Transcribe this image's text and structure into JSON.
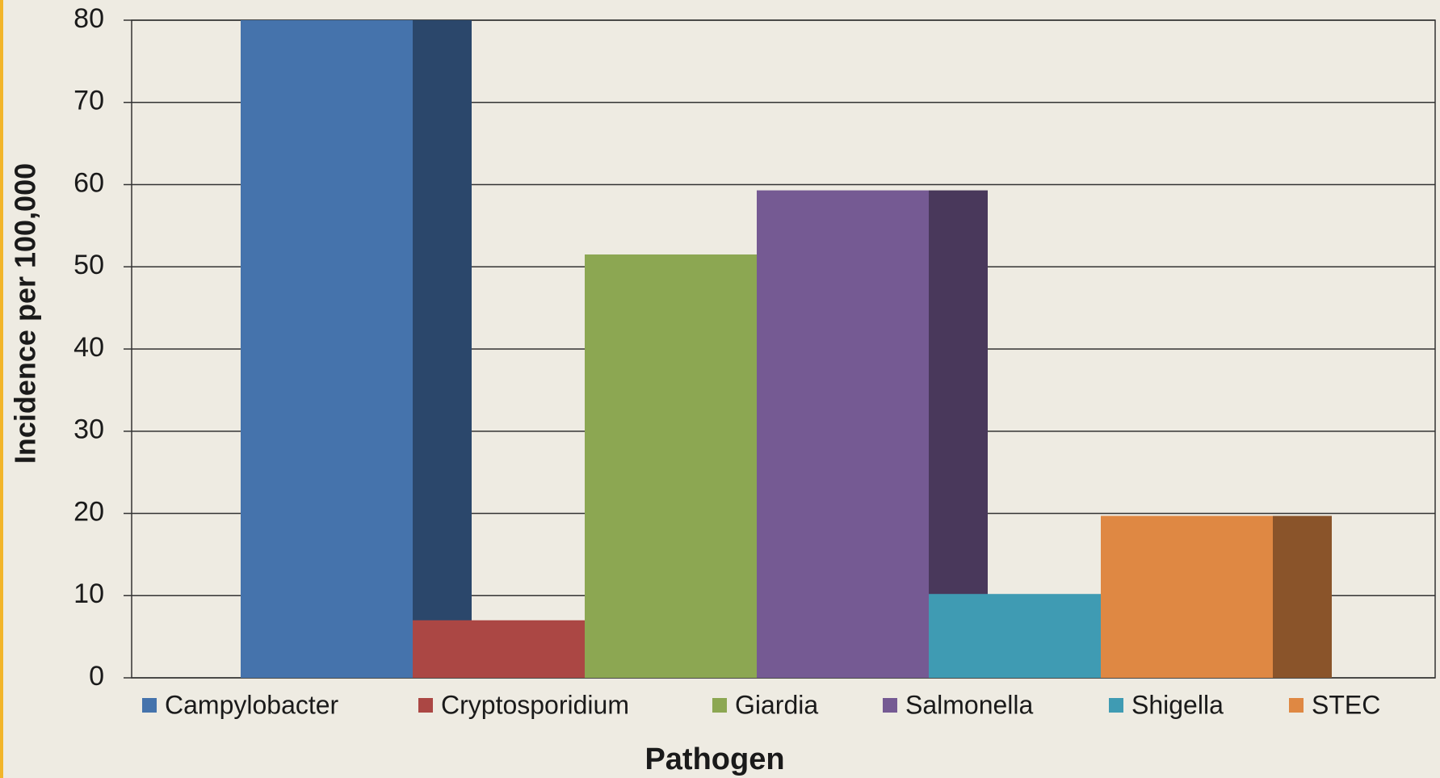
{
  "chart_data": {
    "type": "bar",
    "x_label": "Pathogen",
    "y_label": "Incidence per 100,000",
    "categories": [
      "Campylobacter",
      "Cryptosporidium",
      "Giardia",
      "Salmonella",
      "Shigella",
      "STEC"
    ],
    "values": [
      80,
      7,
      51.5,
      59.3,
      10.2,
      19.7
    ],
    "colors": [
      "#4573ac",
      "#ab4744",
      "#8ca752",
      "#755a93",
      "#3f9bb3",
      "#df8843"
    ],
    "ylim": [
      0,
      80
    ],
    "yticks": [
      0,
      10,
      20,
      30,
      40,
      50,
      60,
      70,
      80
    ],
    "grid": true
  }
}
